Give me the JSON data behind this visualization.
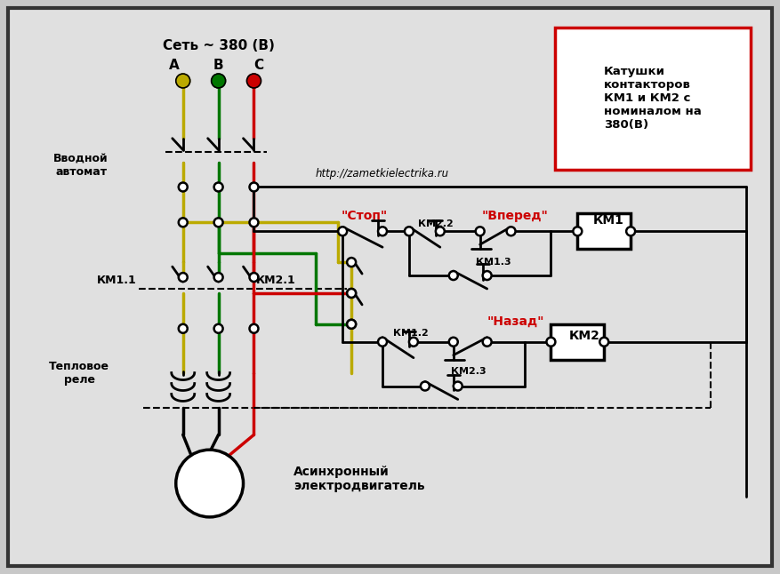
{
  "background_color": "#c8c8c8",
  "inner_bg": "#e0e0e0",
  "url_text": "http://zametkielectrika.ru",
  "net_label": "Сеть ~ 380 (В)",
  "label_vvod": "Вводной\nавтомат",
  "label_km11": "КМ1.1",
  "label_km21": "КМ2.1",
  "label_teplo": "Тепловое\nреле",
  "label_motor": "Асинхронный\nэлектродвигатель",
  "label_stop": "\"Стоп\"",
  "label_vpered": "\"Вперед\"",
  "label_km22": "КМ2.2",
  "label_km13": "КМ1.3",
  "label_nazad": "\"Назад\"",
  "label_km12": "КМ1.2",
  "label_km23": "КМ2.3",
  "label_km1": "КМ1",
  "label_km2": "КМ2",
  "box_label": "Катушки\nконтакторов\nКМ1 и КМ2 с\nноминалом на\n380(В)",
  "RED": "#cc0000",
  "GREEN": "#007700",
  "YELLOW": "#bbaa00",
  "BLACK": "#000000",
  "WHITE": "#ffffff"
}
